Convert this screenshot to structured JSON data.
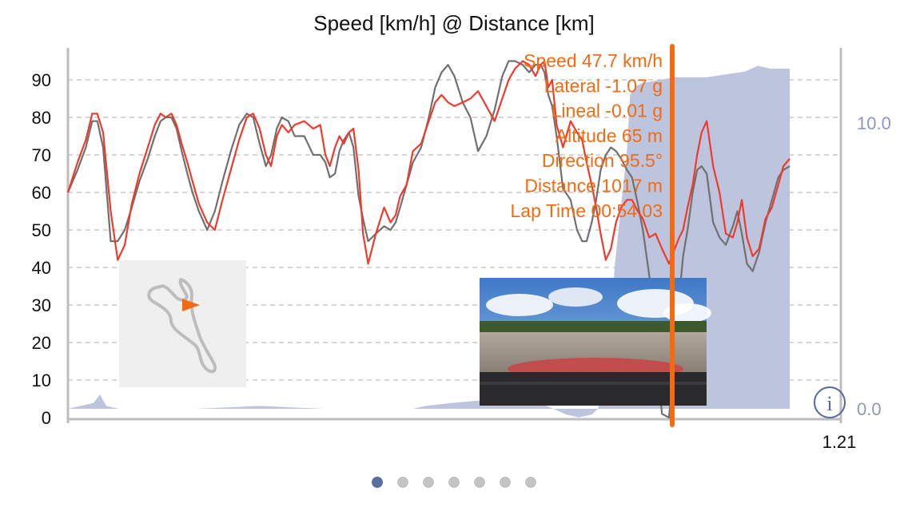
{
  "colors": {
    "current": "#ef3a2c",
    "reference": "#707070",
    "altitude_fill": "#b9c1db",
    "cursor": "#f26b12",
    "readout_text": "#f26b12",
    "grid": "#c9c9c9",
    "right_axis_text": "#8d97bd",
    "info_icon": "#56699f",
    "page_dot_active": "#5a6ea0",
    "page_dot": "#c4c4c4"
  },
  "chart_data": {
    "type": "line",
    "title": "Speed [km/h] @ Distance [km]",
    "x_range": [
      0,
      1.21
    ],
    "x_tick_labels": [
      {
        "x": 1.21,
        "label": "1.21"
      }
    ],
    "ylim": [
      0,
      100
    ],
    "y_ticks": [
      0,
      10,
      20,
      30,
      40,
      50,
      60,
      70,
      80,
      90
    ],
    "grid": true,
    "y2_ticks": [
      {
        "value": 10.0,
        "label": "10.0"
      },
      {
        "value": 0.0,
        "label": "0.0"
      }
    ],
    "series": [
      {
        "role": "current",
        "x": [
          0.0,
          0.015,
          0.028,
          0.038,
          0.046,
          0.055,
          0.067,
          0.078,
          0.089,
          0.1,
          0.112,
          0.125,
          0.136,
          0.145,
          0.153,
          0.162,
          0.17,
          0.178,
          0.187,
          0.195,
          0.205,
          0.218,
          0.23,
          0.242,
          0.255,
          0.268,
          0.28,
          0.29,
          0.3,
          0.31,
          0.318,
          0.327,
          0.335,
          0.345,
          0.355,
          0.37,
          0.384,
          0.395,
          0.403,
          0.41,
          0.418,
          0.425,
          0.432,
          0.44,
          0.447,
          0.455,
          0.462,
          0.47,
          0.482,
          0.495,
          0.505,
          0.513,
          0.52,
          0.53,
          0.54,
          0.553,
          0.565,
          0.575,
          0.585,
          0.595,
          0.605,
          0.618,
          0.63,
          0.642,
          0.655,
          0.668,
          0.68,
          0.69,
          0.7,
          0.712,
          0.722,
          0.732,
          0.74,
          0.746,
          0.752,
          0.758,
          0.765,
          0.775,
          0.787,
          0.797,
          0.805,
          0.812,
          0.82,
          0.827,
          0.834,
          0.842,
          0.85,
          0.858,
          0.866,
          0.875,
          0.883,
          0.892,
          0.9,
          0.91,
          0.92,
          0.93,
          0.941,
          0.95,
          0.957,
          0.963,
          0.97,
          0.978,
          0.985,
          0.992,
          1.0,
          1.01,
          1.02,
          1.03,
          1.041,
          1.048,
          1.055,
          1.063,
          1.072,
          1.082,
          1.092,
          1.102,
          1.112,
          1.12,
          1.13
        ],
        "y": [
          60,
          68,
          74,
          81,
          81,
          76,
          55,
          42,
          46,
          57,
          65,
          72,
          78,
          81,
          80,
          81,
          78,
          73,
          68,
          63,
          57,
          52,
          50,
          58,
          66,
          74,
          80,
          81,
          77,
          70,
          67,
          75,
          78,
          76,
          78,
          79,
          77,
          78,
          70,
          67,
          72,
          75,
          73,
          76,
          77,
          66,
          49,
          41,
          49,
          56,
          52,
          54,
          59,
          62,
          71,
          73,
          79,
          84,
          86,
          84,
          83,
          84,
          85,
          87,
          83,
          79,
          85,
          90,
          93,
          95,
          94,
          91,
          94,
          95,
          88,
          90,
          78,
          72,
          79,
          76,
          74,
          68,
          62,
          56,
          49,
          42,
          45,
          52,
          56,
          58,
          58,
          55,
          53,
          48,
          49,
          45,
          41,
          45,
          48,
          50,
          56,
          62,
          70,
          76,
          79,
          67,
          60,
          49,
          48,
          52,
          58,
          48,
          43,
          45,
          53,
          56,
          62,
          67,
          69
        ]
      },
      {
        "role": "reference",
        "x": [
          0.0,
          0.015,
          0.028,
          0.038,
          0.046,
          0.055,
          0.067,
          0.078,
          0.089,
          0.1,
          0.112,
          0.125,
          0.136,
          0.145,
          0.153,
          0.162,
          0.17,
          0.178,
          0.187,
          0.195,
          0.205,
          0.218,
          0.23,
          0.242,
          0.255,
          0.268,
          0.28,
          0.29,
          0.3,
          0.31,
          0.318,
          0.327,
          0.335,
          0.345,
          0.355,
          0.37,
          0.384,
          0.395,
          0.403,
          0.41,
          0.418,
          0.425,
          0.432,
          0.44,
          0.447,
          0.455,
          0.462,
          0.47,
          0.482,
          0.495,
          0.505,
          0.513,
          0.52,
          0.53,
          0.54,
          0.553,
          0.565,
          0.575,
          0.585,
          0.595,
          0.605,
          0.618,
          0.63,
          0.642,
          0.655,
          0.668,
          0.68,
          0.69,
          0.7,
          0.712,
          0.722,
          0.732,
          0.74,
          0.746,
          0.752,
          0.758,
          0.765,
          0.775,
          0.787,
          0.797,
          0.805,
          0.812,
          0.82,
          0.827,
          0.834,
          0.842,
          0.85,
          0.858,
          0.866,
          0.875,
          0.883,
          0.892,
          0.9,
          0.91,
          0.92,
          0.93,
          0.941,
          0.95,
          0.957,
          0.963,
          0.97,
          0.978,
          0.985,
          0.992,
          1.0,
          1.01,
          1.02,
          1.03,
          1.041,
          1.048,
          1.055,
          1.063,
          1.072,
          1.082,
          1.092,
          1.102,
          1.112,
          1.12,
          1.13
        ],
        "y": [
          60,
          66,
          72,
          79,
          79,
          72,
          47,
          47,
          50,
          56,
          63,
          69,
          75,
          79,
          80,
          80,
          77,
          71,
          65,
          60,
          55,
          50,
          55,
          63,
          71,
          78,
          81,
          80,
          73,
          67,
          70,
          77,
          80,
          79,
          75,
          75,
          70,
          70,
          68,
          64,
          65,
          71,
          74,
          76,
          72,
          59,
          53,
          47,
          49,
          51,
          50,
          52,
          56,
          62,
          68,
          72,
          80,
          88,
          92,
          94,
          91,
          84,
          80,
          71,
          75,
          82,
          91,
          95,
          95,
          94,
          92,
          94,
          94,
          92,
          86,
          83,
          75,
          61,
          58,
          50,
          47,
          47,
          52,
          58,
          66,
          70,
          72,
          71,
          69,
          66,
          64,
          57,
          50,
          38,
          19,
          1,
          0,
          18,
          32,
          43,
          50,
          60,
          66,
          67,
          65,
          52,
          48,
          46,
          51,
          55,
          49,
          41,
          39,
          44,
          52,
          58,
          64,
          66,
          67
        ]
      }
    ],
    "altitude_area": {
      "x": [
        0.0,
        0.02,
        0.04,
        0.05,
        0.06,
        0.08,
        0.12,
        0.2,
        0.3,
        0.4,
        0.45,
        0.5,
        0.54,
        0.56,
        0.6,
        0.65,
        0.7,
        0.74,
        0.76,
        0.78,
        0.8,
        0.82,
        0.83,
        0.85,
        0.856,
        0.875,
        0.88,
        0.89,
        0.9,
        0.95,
        1.0,
        1.03,
        1.06,
        1.08,
        1.1,
        1.13
      ],
      "y": [
        0.0,
        0.1,
        0.2,
        0.5,
        0.1,
        0.0,
        0.0,
        0.0,
        0.1,
        0.0,
        0.0,
        0.0,
        0.0,
        0.1,
        0.2,
        0.3,
        0.3,
        0.2,
        0.0,
        -0.2,
        -0.3,
        -0.2,
        0.0,
        3.0,
        5.0,
        9.0,
        11.0,
        11.3,
        11.4,
        11.6,
        11.6,
        11.7,
        11.8,
        12.0,
        11.9,
        11.9
      ]
    }
  },
  "cursor": {
    "x": 0.946,
    "readouts": [
      "Speed 47.7 km/h",
      "Lateral -1.07 g",
      "Lineal -0.01 g",
      "Altitude 65 m",
      "Direction 95.5°",
      "Distance 1017 m",
      "Lap Time 00:54.03"
    ]
  },
  "info_icon": {
    "label": "i"
  },
  "pager": {
    "count": 7,
    "active": 0
  }
}
